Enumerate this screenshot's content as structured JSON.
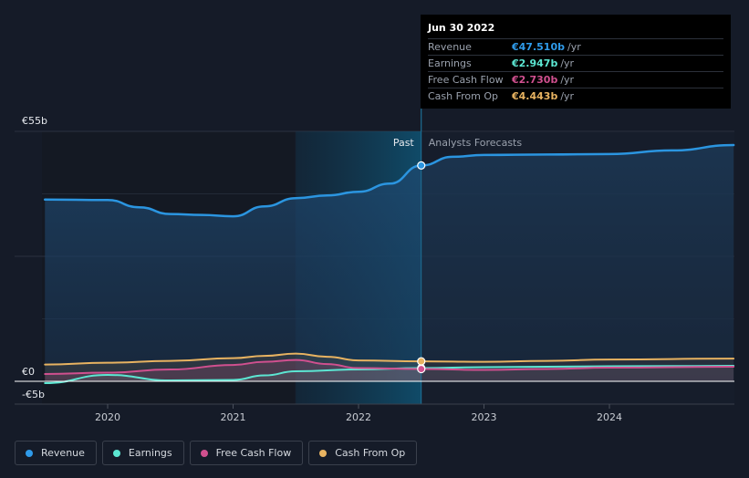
{
  "chart_data": {
    "type": "area",
    "title": "",
    "xlabel": "",
    "ylabel": "",
    "ylim": [
      -5,
      55
    ],
    "y_tick_labels": {
      "top": "€55b",
      "zero": "€0",
      "bottom": "-€5b"
    },
    "x_ticks": [
      {
        "value": 2020.0,
        "label": "2020"
      },
      {
        "value": 2021.0,
        "label": "2021"
      },
      {
        "value": 2022.0,
        "label": "2022"
      },
      {
        "value": 2023.0,
        "label": "2023"
      },
      {
        "value": 2024.0,
        "label": "2024"
      }
    ],
    "x_range": [
      2019.25,
      2024.99
    ],
    "past_label": "Past",
    "forecast_label": "Analysts Forecasts",
    "past_start": 2021.5,
    "divider": 2022.5,
    "series": [
      {
        "name": "Revenue",
        "color": "#2b95e0",
        "x": [
          2019.5,
          2020.0,
          2020.25,
          2020.5,
          2020.75,
          2021.0,
          2021.25,
          2021.5,
          2021.75,
          2022.0,
          2022.25,
          2022.5,
          2022.75,
          2023.0,
          2023.5,
          2024.0,
          2024.5,
          2024.99
        ],
        "values": [
          40.0,
          39.9,
          38.3,
          36.8,
          36.6,
          36.3,
          38.5,
          40.3,
          40.9,
          41.7,
          43.5,
          47.5,
          49.4,
          49.8,
          49.9,
          50.0,
          50.8,
          52.0
        ]
      },
      {
        "name": "Earnings",
        "color": "#5ce6d2",
        "x": [
          2019.5,
          2020.0,
          2020.5,
          2021.0,
          2021.25,
          2021.5,
          2022.0,
          2022.5,
          2023.0,
          2023.5,
          2024.0,
          2024.99
        ],
        "values": [
          -0.4,
          1.4,
          0.2,
          0.3,
          1.3,
          2.2,
          2.6,
          2.9,
          3.1,
          3.2,
          3.3,
          3.4
        ]
      },
      {
        "name": "Free Cash Flow",
        "color": "#d0508f",
        "x": [
          2019.5,
          2020.0,
          2020.5,
          2021.0,
          2021.25,
          2021.5,
          2021.75,
          2022.0,
          2022.5,
          2023.0,
          2023.5,
          2024.0,
          2024.99
        ],
        "values": [
          1.6,
          1.9,
          2.6,
          3.6,
          4.3,
          4.7,
          3.8,
          2.9,
          2.7,
          2.5,
          2.7,
          3.0,
          3.2
        ]
      },
      {
        "name": "Cash From Op",
        "color": "#e8b361",
        "x": [
          2019.5,
          2020.0,
          2020.5,
          2021.0,
          2021.25,
          2021.5,
          2021.75,
          2022.0,
          2022.5,
          2023.0,
          2023.5,
          2024.0,
          2024.99
        ],
        "values": [
          3.7,
          4.1,
          4.5,
          5.1,
          5.6,
          6.1,
          5.4,
          4.6,
          4.4,
          4.3,
          4.5,
          4.8,
          5.0
        ]
      }
    ]
  },
  "tooltip": {
    "date": "Jun 30 2022",
    "unit": "/yr",
    "rows": [
      {
        "name": "Revenue",
        "value": "€47.510b",
        "color": "#2f9bea"
      },
      {
        "name": "Earnings",
        "value": "€2.947b",
        "color": "#5ce6d2"
      },
      {
        "name": "Free Cash Flow",
        "value": "€2.730b",
        "color": "#d0508f"
      },
      {
        "name": "Cash From Op",
        "value": "€4.443b",
        "color": "#e8b361"
      }
    ]
  },
  "legend": [
    {
      "name": "Revenue",
      "color": "#2f9bea"
    },
    {
      "name": "Earnings",
      "color": "#5ce6d2"
    },
    {
      "name": "Free Cash Flow",
      "color": "#d0508f"
    },
    {
      "name": "Cash From Op",
      "color": "#e8b361"
    }
  ]
}
